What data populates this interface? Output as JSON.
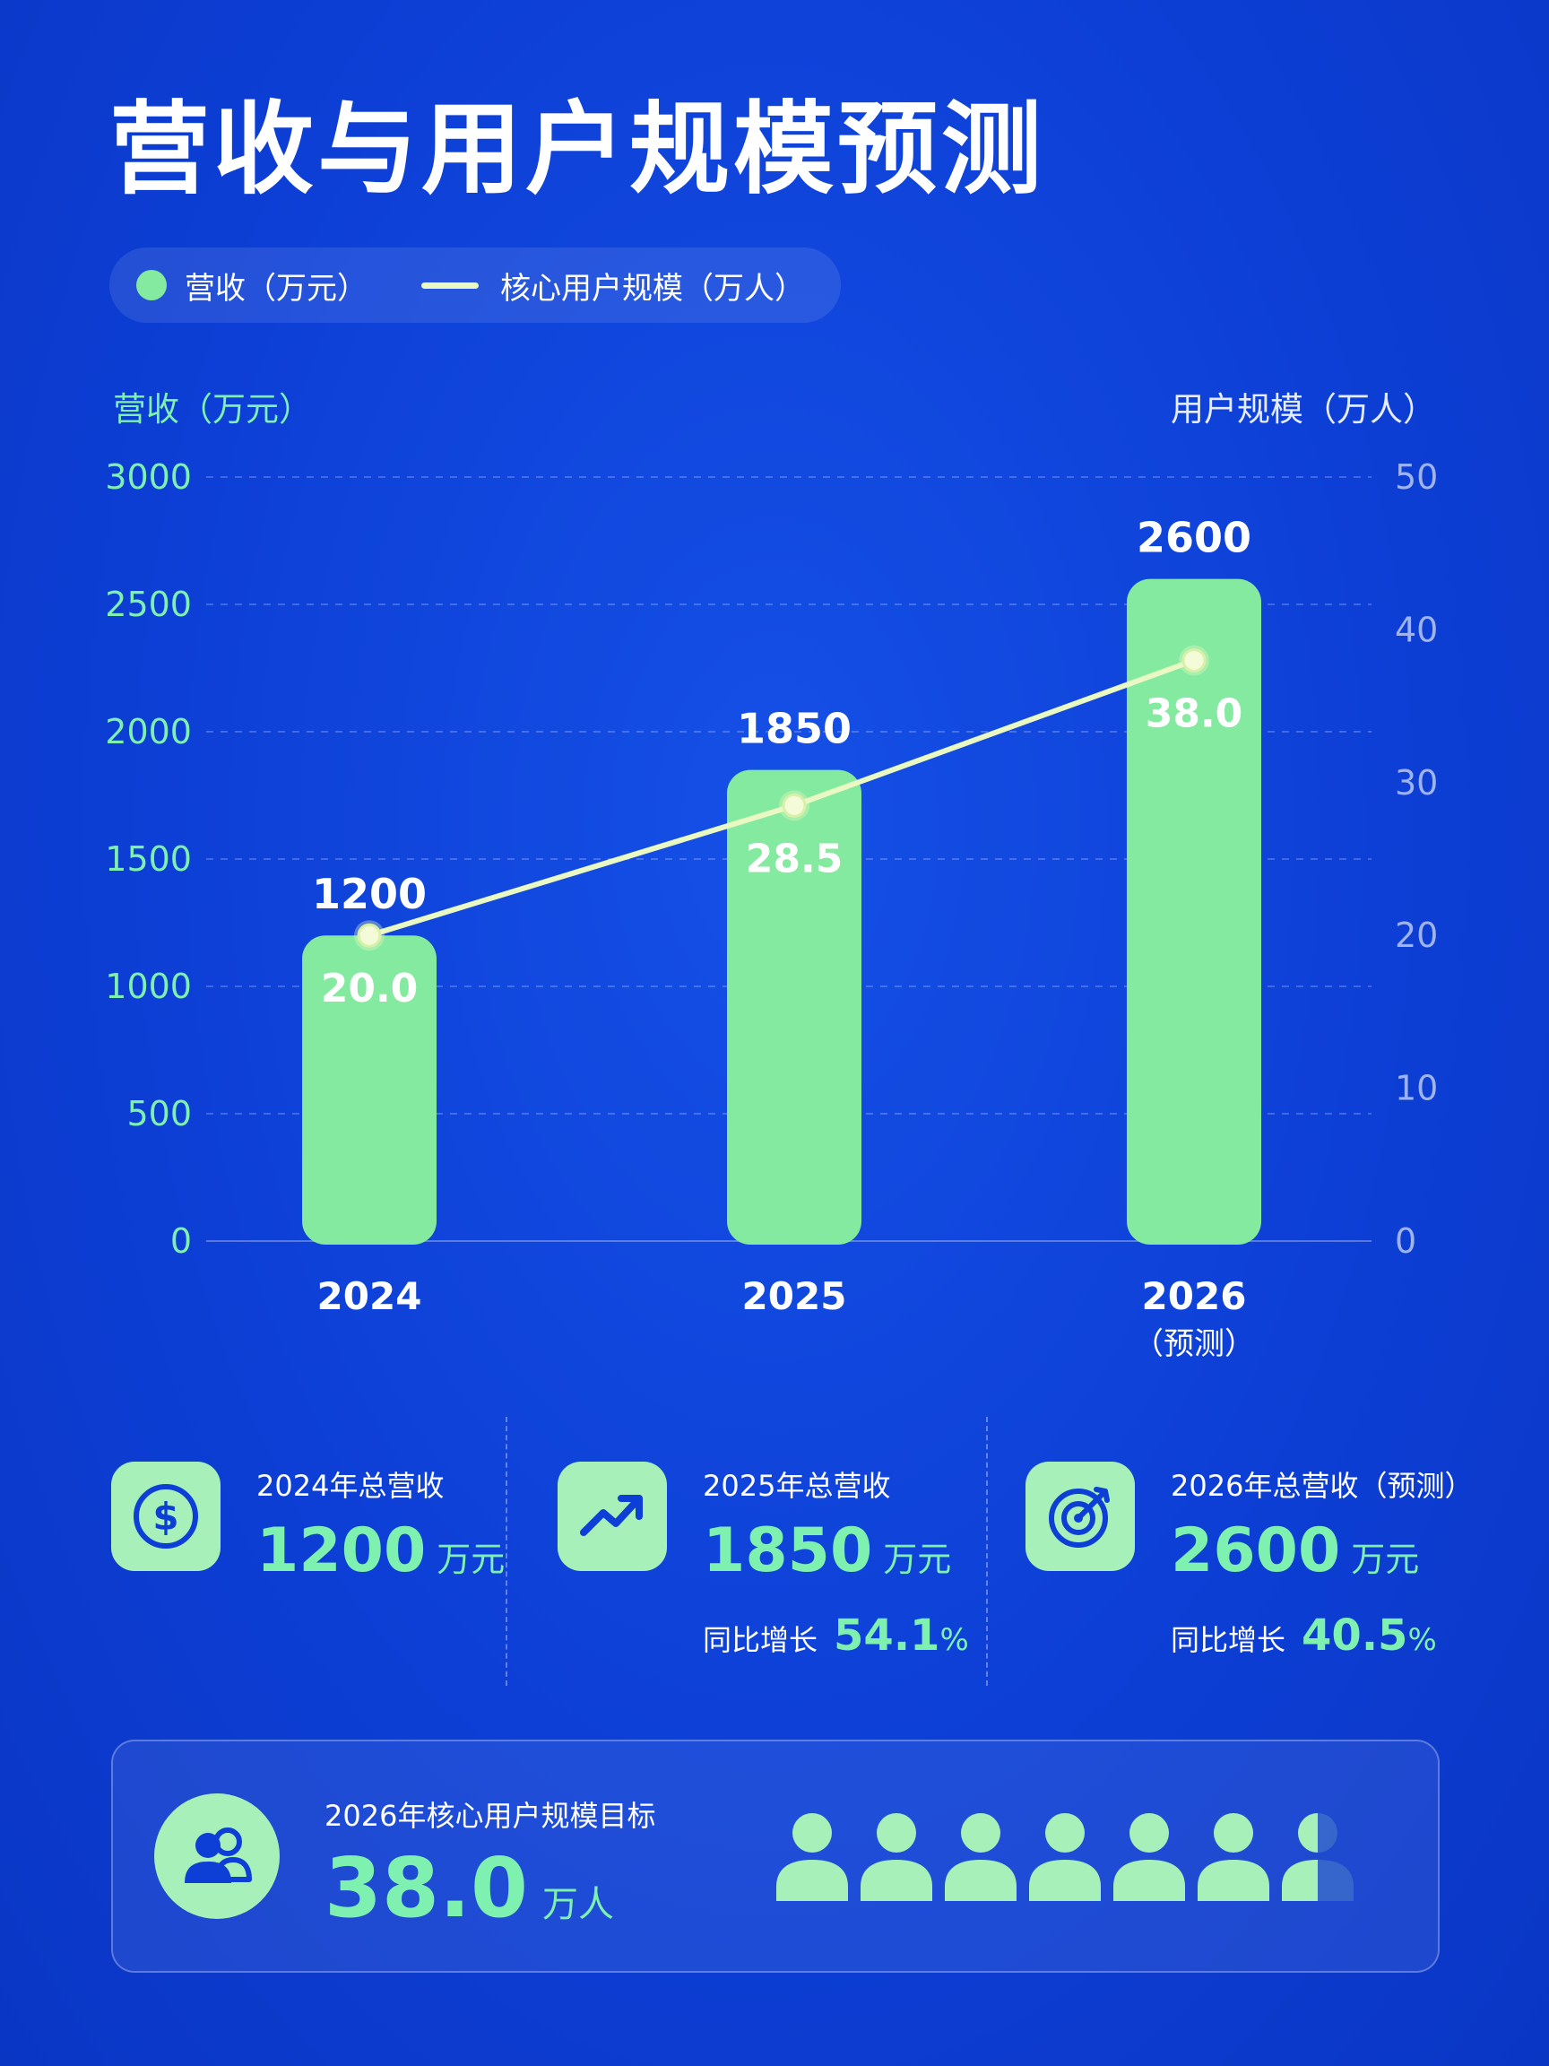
{
  "title": "营收与用户规模预测",
  "legend": {
    "revenue": "营收（万元）",
    "users": "核心用户规模（万人）"
  },
  "colors": {
    "background": "#0d3fd6",
    "bar": "#83ea9f",
    "line": "#eaf8c4",
    "accent": "#7ef0b0"
  },
  "chart_data": {
    "type": "bar",
    "categories": [
      "2024",
      "2025",
      "2026"
    ],
    "category_sublabels": [
      "",
      "",
      "（预测）"
    ],
    "series": [
      {
        "name": "营收（万元）",
        "type": "bar",
        "axis": "left",
        "values": [
          1200,
          1850,
          2600
        ],
        "labels": [
          "1200",
          "1850",
          "2600"
        ]
      },
      {
        "name": "核心用户规模（万人）",
        "type": "line",
        "axis": "right",
        "values": [
          20.0,
          28.5,
          38.0
        ],
        "labels": [
          "20.0",
          "28.5",
          "38.0"
        ]
      }
    ],
    "ylabel": "营收（万元）",
    "y2label": "用户规模（万人）",
    "ylim": [
      0,
      3000
    ],
    "y2lim": [
      0,
      50
    ],
    "yticks": [
      "0",
      "500",
      "1000",
      "1500",
      "2000",
      "2500",
      "3000"
    ],
    "y2ticks": [
      "0",
      "10",
      "20",
      "30",
      "40",
      "50"
    ],
    "grid": true,
    "legend_position": "top-left"
  },
  "stats": [
    {
      "icon": "dollar-coin-icon",
      "title": "2024年总营收",
      "value": "1200",
      "unit": "万元"
    },
    {
      "icon": "trend-up-icon",
      "title": "2025年总营收",
      "value": "1850",
      "unit": "万元",
      "growth_label": "同比增长",
      "growth_value": "54.1",
      "growth_unit": "%"
    },
    {
      "icon": "target-icon",
      "title": "2026年总营收（预测）",
      "value": "2600",
      "unit": "万元",
      "growth_label": "同比增长",
      "growth_value": "40.5",
      "growth_unit": "%"
    }
  ],
  "target": {
    "icon": "users-icon",
    "title": "2026年核心用户规模目标",
    "value": "38.0",
    "unit": "万人",
    "people_icons_filled": 6.5,
    "people_icons_total": 7
  }
}
